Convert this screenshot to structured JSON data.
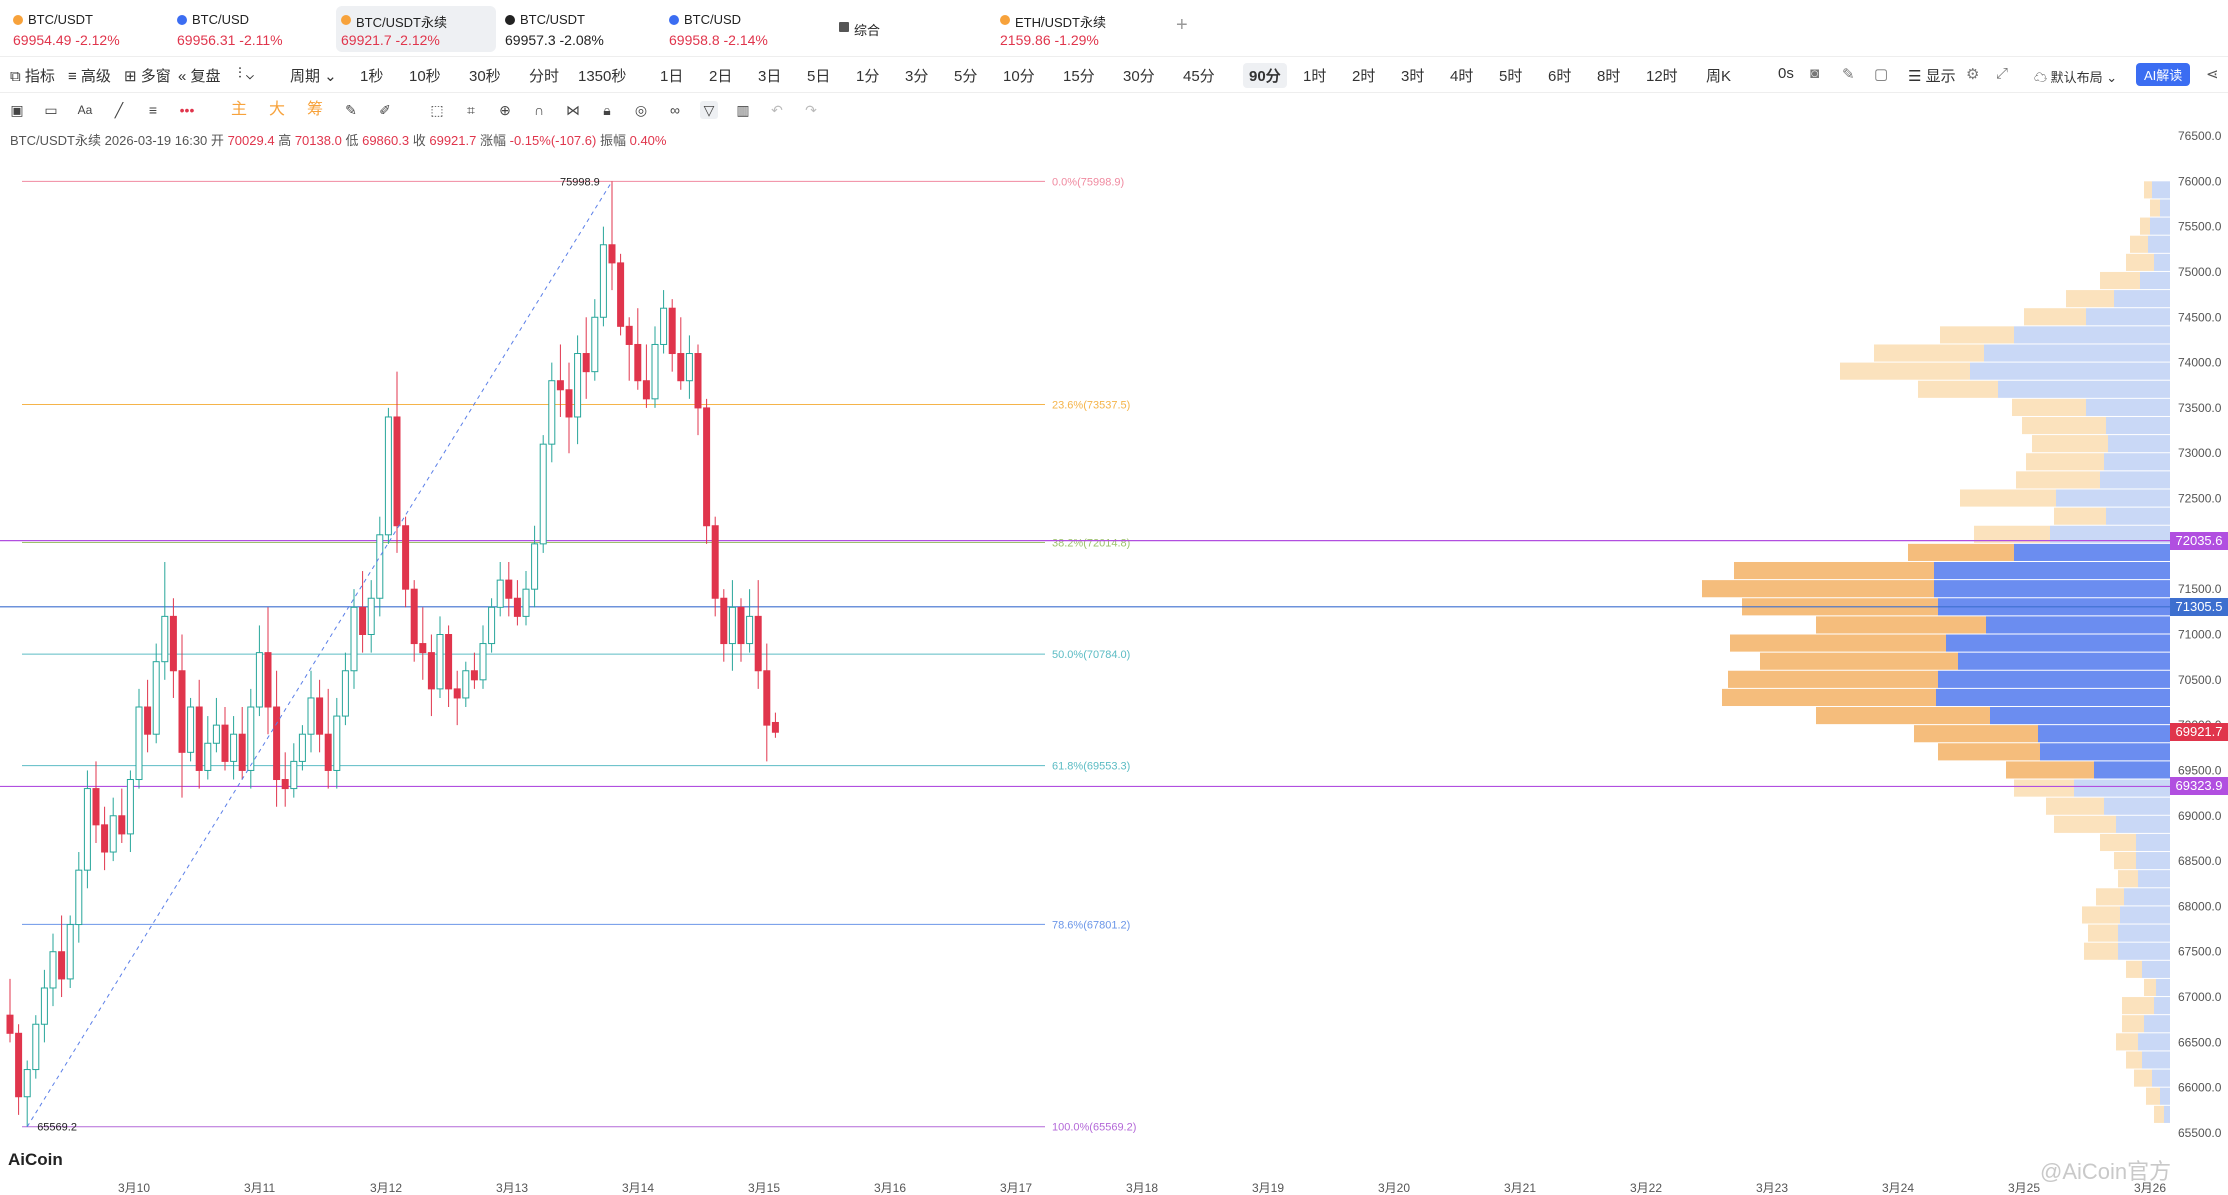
{
  "tabs": [
    {
      "pair": "BTC/USDT",
      "price": "69954.49",
      "change": "-2.12%",
      "color": "#f7a23b",
      "active": false,
      "dark": false
    },
    {
      "pair": "BTC/USD",
      "price": "69956.31",
      "change": "-2.11%",
      "color": "#3b6df2",
      "active": false,
      "dark": false
    },
    {
      "pair": "BTC/USDT永续",
      "price": "69921.7",
      "change": "-2.12%",
      "color": "#f7a23b",
      "active": true,
      "dark": false
    },
    {
      "pair": "BTC/USDT",
      "price": "69957.3",
      "change": "-2.08%",
      "color": "#222222",
      "active": false,
      "dark": true
    },
    {
      "pair": "BTC/USD",
      "price": "69958.8",
      "change": "-2.14%",
      "color": "#3b6df2",
      "active": false,
      "dark": false
    },
    {
      "pair": "综合",
      "price": "",
      "change": "",
      "color": "#333333",
      "active": false,
      "dark": false
    },
    {
      "pair": "ETH/USDT永续",
      "price": "2159.86",
      "change": "-1.29%",
      "color": "#f7a23b",
      "active": false,
      "dark": false
    }
  ],
  "toolbar": {
    "left": [
      "指标",
      "高级",
      "多窗",
      "复盘",
      "周期"
    ],
    "intervals": [
      "1秒",
      "10秒",
      "30秒",
      "分时",
      "1350秒",
      "1日",
      "2日",
      "3日",
      "5日",
      "1分",
      "3分",
      "5分",
      "10分",
      "15分",
      "30分",
      "45分",
      "90分",
      "1时",
      "2时",
      "3时",
      "4时",
      "5时",
      "6时",
      "8时",
      "12时",
      "周K"
    ],
    "selected": "90分",
    "right": [
      "0s",
      "显示",
      "默认布局"
    ],
    "ai_label": "AI解读"
  },
  "drawtools": {
    "labels": [
      "主",
      "大",
      "筹"
    ]
  },
  "info": {
    "pair": "BTC/USDT永续",
    "datetime": "2026-03-19 16:30",
    "open_label": "开",
    "open": "70029.4",
    "high_label": "高",
    "high": "70138.0",
    "low_label": "低",
    "low": "69860.3",
    "close_label": "收",
    "close": "69921.7",
    "change_label": "涨幅",
    "change": "-0.15%(-107.6)",
    "amp_label": "振幅",
    "amp": "0.40%"
  },
  "chart_data": {
    "type": "candlestick",
    "ylim": [
      65500,
      76500
    ],
    "y_ticks": [
      65500,
      66000,
      66500,
      67000,
      67500,
      68000,
      68500,
      69000,
      69500,
      70000,
      70500,
      71000,
      71500,
      72000,
      72500,
      73000,
      73500,
      74000,
      74500,
      75000,
      75500,
      76000,
      76500
    ],
    "y_tick_labels": [
      "65500.0",
      "66000.0",
      "66500.0",
      "67000.0",
      "67500.0",
      "68000.0",
      "68500.0",
      "69000.0",
      "69500.0",
      "70000.0",
      "70500.0",
      "71000.0",
      "71500.0",
      "72000.0",
      "72500.0",
      "73000.0",
      "73500.0",
      "74000.0",
      "74500.0",
      "75000.0",
      "75500.0",
      "76000.0",
      "76500.0"
    ],
    "x_tick_labels": [
      "3月10",
      "3月11",
      "3月12",
      "3月13",
      "3月14",
      "3月15",
      "3月16",
      "3月17",
      "3月18",
      "3月19",
      "3月20",
      "3月21",
      "3月22",
      "3月23",
      "3月24",
      "3月25",
      "3月26"
    ],
    "up_color": "#26a69a",
    "down_color": "#e0354c",
    "candles_ohlc": [
      [
        66800,
        67200,
        66500,
        66600
      ],
      [
        66600,
        66700,
        65700,
        65900
      ],
      [
        65900,
        66300,
        65569.2,
        66200
      ],
      [
        66200,
        66800,
        66100,
        66700
      ],
      [
        66700,
        67300,
        66500,
        67100
      ],
      [
        67100,
        67700,
        66900,
        67500
      ],
      [
        67500,
        67900,
        67000,
        67200
      ],
      [
        67200,
        67900,
        67100,
        67800
      ],
      [
        67800,
        68600,
        67600,
        68400
      ],
      [
        68400,
        69500,
        68200,
        69300
      ],
      [
        69300,
        69600,
        68700,
        68900
      ],
      [
        68900,
        69100,
        68400,
        68600
      ],
      [
        68600,
        69200,
        68500,
        69000
      ],
      [
        69000,
        69300,
        68700,
        68800
      ],
      [
        68800,
        69500,
        68600,
        69400
      ],
      [
        69400,
        70400,
        69300,
        70200
      ],
      [
        70200,
        70500,
        69700,
        69900
      ],
      [
        69900,
        70900,
        69800,
        70700
      ],
      [
        70700,
        71800,
        70500,
        71200
      ],
      [
        71200,
        71400,
        70300,
        70600
      ],
      [
        70600,
        71000,
        69200,
        69700
      ],
      [
        69700,
        70300,
        69600,
        70200
      ],
      [
        70200,
        70500,
        69300,
        69500
      ],
      [
        69500,
        70100,
        69400,
        69800
      ],
      [
        69800,
        70300,
        69700,
        70000
      ],
      [
        70000,
        70200,
        69500,
        69600
      ],
      [
        69600,
        70100,
        69400,
        69900
      ],
      [
        69900,
        70200,
        69400,
        69500
      ],
      [
        69500,
        70400,
        69300,
        70200
      ],
      [
        70200,
        71100,
        70100,
        70800
      ],
      [
        70800,
        71300,
        69900,
        70200
      ],
      [
        70200,
        70600,
        69100,
        69400
      ],
      [
        69400,
        69700,
        69100,
        69300
      ],
      [
        69300,
        69800,
        69200,
        69600
      ],
      [
        69600,
        70000,
        69500,
        69900
      ],
      [
        69900,
        70600,
        69700,
        70300
      ],
      [
        70300,
        70500,
        69700,
        69900
      ],
      [
        69900,
        70400,
        69300,
        69500
      ],
      [
        69500,
        70300,
        69300,
        70100
      ],
      [
        70100,
        70800,
        70000,
        70600
      ],
      [
        70600,
        71500,
        70400,
        71300
      ],
      [
        71300,
        71700,
        70800,
        71000
      ],
      [
        71000,
        71600,
        70800,
        71400
      ],
      [
        71400,
        72300,
        71200,
        72100
      ],
      [
        72100,
        73500,
        72000,
        73400
      ],
      [
        73400,
        73900,
        71900,
        72200
      ],
      [
        72200,
        72300,
        71300,
        71500
      ],
      [
        71500,
        71600,
        70700,
        70900
      ],
      [
        70900,
        71300,
        70500,
        70800
      ],
      [
        70800,
        71000,
        70100,
        70400
      ],
      [
        70400,
        71200,
        70300,
        71000
      ],
      [
        71000,
        71100,
        70200,
        70400
      ],
      [
        70400,
        70600,
        70000,
        70300
      ],
      [
        70300,
        70700,
        70200,
        70600
      ],
      [
        70600,
        70800,
        70400,
        70500
      ],
      [
        70500,
        71100,
        70400,
        70900
      ],
      [
        70900,
        71400,
        70800,
        71300
      ],
      [
        71300,
        71800,
        71200,
        71600
      ],
      [
        71600,
        71800,
        71200,
        71400
      ],
      [
        71400,
        71600,
        71100,
        71200
      ],
      [
        71200,
        71700,
        71100,
        71500
      ],
      [
        71500,
        72200,
        71300,
        72000
      ],
      [
        72000,
        73200,
        71900,
        73100
      ],
      [
        73100,
        74000,
        72900,
        73800
      ],
      [
        73800,
        74200,
        73400,
        73700
      ],
      [
        73700,
        74000,
        73000,
        73400
      ],
      [
        73400,
        74300,
        73100,
        74100
      ],
      [
        74100,
        74500,
        73600,
        73900
      ],
      [
        73900,
        74700,
        73800,
        74500
      ],
      [
        74500,
        75500,
        74400,
        75300
      ],
      [
        75300,
        75998.9,
        74800,
        75100
      ],
      [
        75100,
        75200,
        74300,
        74400
      ],
      [
        74400,
        74500,
        73800,
        74200
      ],
      [
        74200,
        74600,
        73700,
        73800
      ],
      [
        73800,
        74200,
        73500,
        73600
      ],
      [
        73600,
        74400,
        73500,
        74200
      ],
      [
        74200,
        74800,
        74100,
        74600
      ],
      [
        74600,
        74700,
        73900,
        74100
      ],
      [
        74100,
        74500,
        73700,
        73800
      ],
      [
        73800,
        74300,
        73600,
        74100
      ],
      [
        74100,
        74200,
        73200,
        73500
      ],
      [
        73500,
        73600,
        72000,
        72200
      ],
      [
        72200,
        72300,
        71200,
        71400
      ],
      [
        71400,
        71500,
        70700,
        70900
      ],
      [
        70900,
        71600,
        70600,
        71300
      ],
      [
        71300,
        71400,
        70700,
        70900
      ],
      [
        70900,
        71500,
        70800,
        71200
      ],
      [
        71200,
        71600,
        70400,
        70600
      ],
      [
        70600,
        70900,
        69600,
        70000
      ],
      [
        70029.4,
        70138.0,
        69860.3,
        69921.7
      ]
    ],
    "fibonacci": [
      {
        "label": "0.0%",
        "price": 75998.9,
        "text": "0.0%(75998.9)",
        "color": "#f08aa0"
      },
      {
        "label": "23.6%",
        "price": 73537.5,
        "text": "23.6%(73537.5)",
        "color": "#f5b44a"
      },
      {
        "label": "38.2%",
        "price": 72014.8,
        "text": "38.2%(72014.8)",
        "color": "#9cc26b"
      },
      {
        "label": "50.0%",
        "price": 70784.0,
        "text": "50.0%(70784.0)",
        "color": "#5cbcc4"
      },
      {
        "label": "61.8%",
        "price": 69553.3,
        "text": "61.8%(69553.3)",
        "color": "#5cbcc4"
      },
      {
        "label": "78.6%",
        "price": 67801.2,
        "text": "78.6%(67801.2)",
        "color": "#6b96e8"
      },
      {
        "label": "100.0%",
        "price": 65569.2,
        "text": "100.0%(65569.2)",
        "color": "#b469d8"
      }
    ],
    "swing_high_label": "75998.9",
    "swing_low_label": "65569.2",
    "price_lines": [
      {
        "price": 72035.6,
        "label": "72035.6",
        "color": "#b14fe0"
      },
      {
        "price": 71305.5,
        "label": "71305.5",
        "color": "#3d6fcf"
      },
      {
        "price": 69921.7,
        "label": "69921.7",
        "color": "#e0354c"
      },
      {
        "price": 69323.9,
        "label": "69323.9",
        "color": "#b14fe0"
      }
    ],
    "volume_profile": [
      {
        "price": 75900,
        "buy": 0.9,
        "sell": 1.3
      },
      {
        "price": 75700,
        "buy": 0.5,
        "sell": 1.0
      },
      {
        "price": 75500,
        "buy": 1.0,
        "sell": 1.5
      },
      {
        "price": 75300,
        "buy": 1.1,
        "sell": 2.0
      },
      {
        "price": 75100,
        "buy": 0.8,
        "sell": 2.2
      },
      {
        "price": 74900,
        "buy": 1.5,
        "sell": 3.5
      },
      {
        "price": 74700,
        "buy": 2.8,
        "sell": 5.2
      },
      {
        "price": 74500,
        "buy": 4.2,
        "sell": 7.3
      },
      {
        "price": 74300,
        "buy": 7.8,
        "sell": 11.5
      },
      {
        "price": 74100,
        "buy": 9.3,
        "sell": 14.8
      },
      {
        "price": 73900,
        "buy": 10.0,
        "sell": 16.5
      },
      {
        "price": 73700,
        "buy": 8.6,
        "sell": 12.6
      },
      {
        "price": 73500,
        "buy": 4.2,
        "sell": 7.9
      },
      {
        "price": 73300,
        "buy": 3.2,
        "sell": 7.4
      },
      {
        "price": 73100,
        "buy": 3.1,
        "sell": 6.9
      },
      {
        "price": 72900,
        "buy": 3.3,
        "sell": 7.2
      },
      {
        "price": 72700,
        "buy": 3.5,
        "sell": 7.7
      },
      {
        "price": 72500,
        "buy": 5.7,
        "sell": 10.5
      },
      {
        "price": 72300,
        "buy": 3.2,
        "sell": 5.8
      },
      {
        "price": 72100,
        "buy": 6.0,
        "sell": 9.8
      },
      {
        "price": 71900,
        "buy": 7.8,
        "sell": 13.1
      },
      {
        "price": 71700,
        "buy": 11.8,
        "sell": 21.8
      },
      {
        "price": 71500,
        "buy": 11.8,
        "sell": 23.4
      },
      {
        "price": 71300,
        "buy": 11.6,
        "sell": 21.4
      },
      {
        "price": 71100,
        "buy": 9.2,
        "sell": 17.7
      },
      {
        "price": 70900,
        "buy": 11.2,
        "sell": 22.0
      },
      {
        "price": 70700,
        "buy": 10.6,
        "sell": 20.5
      },
      {
        "price": 70500,
        "buy": 11.6,
        "sell": 22.1
      },
      {
        "price": 70300,
        "buy": 11.7,
        "sell": 22.4
      },
      {
        "price": 70100,
        "buy": 9.0,
        "sell": 17.7
      },
      {
        "price": 69900,
        "buy": 6.6,
        "sell": 12.8
      },
      {
        "price": 69700,
        "buy": 6.5,
        "sell": 11.6
      },
      {
        "price": 69500,
        "buy": 3.8,
        "sell": 8.2
      },
      {
        "price": 69300,
        "buy": 4.8,
        "sell": 7.8
      },
      {
        "price": 69100,
        "buy": 3.3,
        "sell": 6.2
      },
      {
        "price": 68900,
        "buy": 2.7,
        "sell": 5.8
      },
      {
        "price": 68700,
        "buy": 1.7,
        "sell": 3.5
      },
      {
        "price": 68500,
        "buy": 1.7,
        "sell": 2.8
      },
      {
        "price": 68300,
        "buy": 1.6,
        "sell": 2.6
      },
      {
        "price": 68100,
        "buy": 2.3,
        "sell": 3.7
      },
      {
        "price": 67900,
        "buy": 2.5,
        "sell": 4.4
      },
      {
        "price": 67700,
        "buy": 2.6,
        "sell": 4.1
      },
      {
        "price": 67500,
        "buy": 2.6,
        "sell": 4.3
      },
      {
        "price": 67300,
        "buy": 1.4,
        "sell": 2.2
      },
      {
        "price": 67100,
        "buy": 0.7,
        "sell": 1.3
      },
      {
        "price": 66900,
        "buy": 0.8,
        "sell": 2.4
      },
      {
        "price": 66700,
        "buy": 1.3,
        "sell": 2.4
      },
      {
        "price": 66500,
        "buy": 1.6,
        "sell": 2.7
      },
      {
        "price": 66300,
        "buy": 1.4,
        "sell": 2.2
      },
      {
        "price": 66100,
        "buy": 0.9,
        "sell": 1.8
      },
      {
        "price": 65900,
        "buy": 0.5,
        "sell": 1.2
      },
      {
        "price": 65700,
        "buy": 0.3,
        "sell": 0.8
      }
    ]
  },
  "branding": {
    "logo": "AiCoin",
    "watermark": "@AiCoin官方"
  }
}
